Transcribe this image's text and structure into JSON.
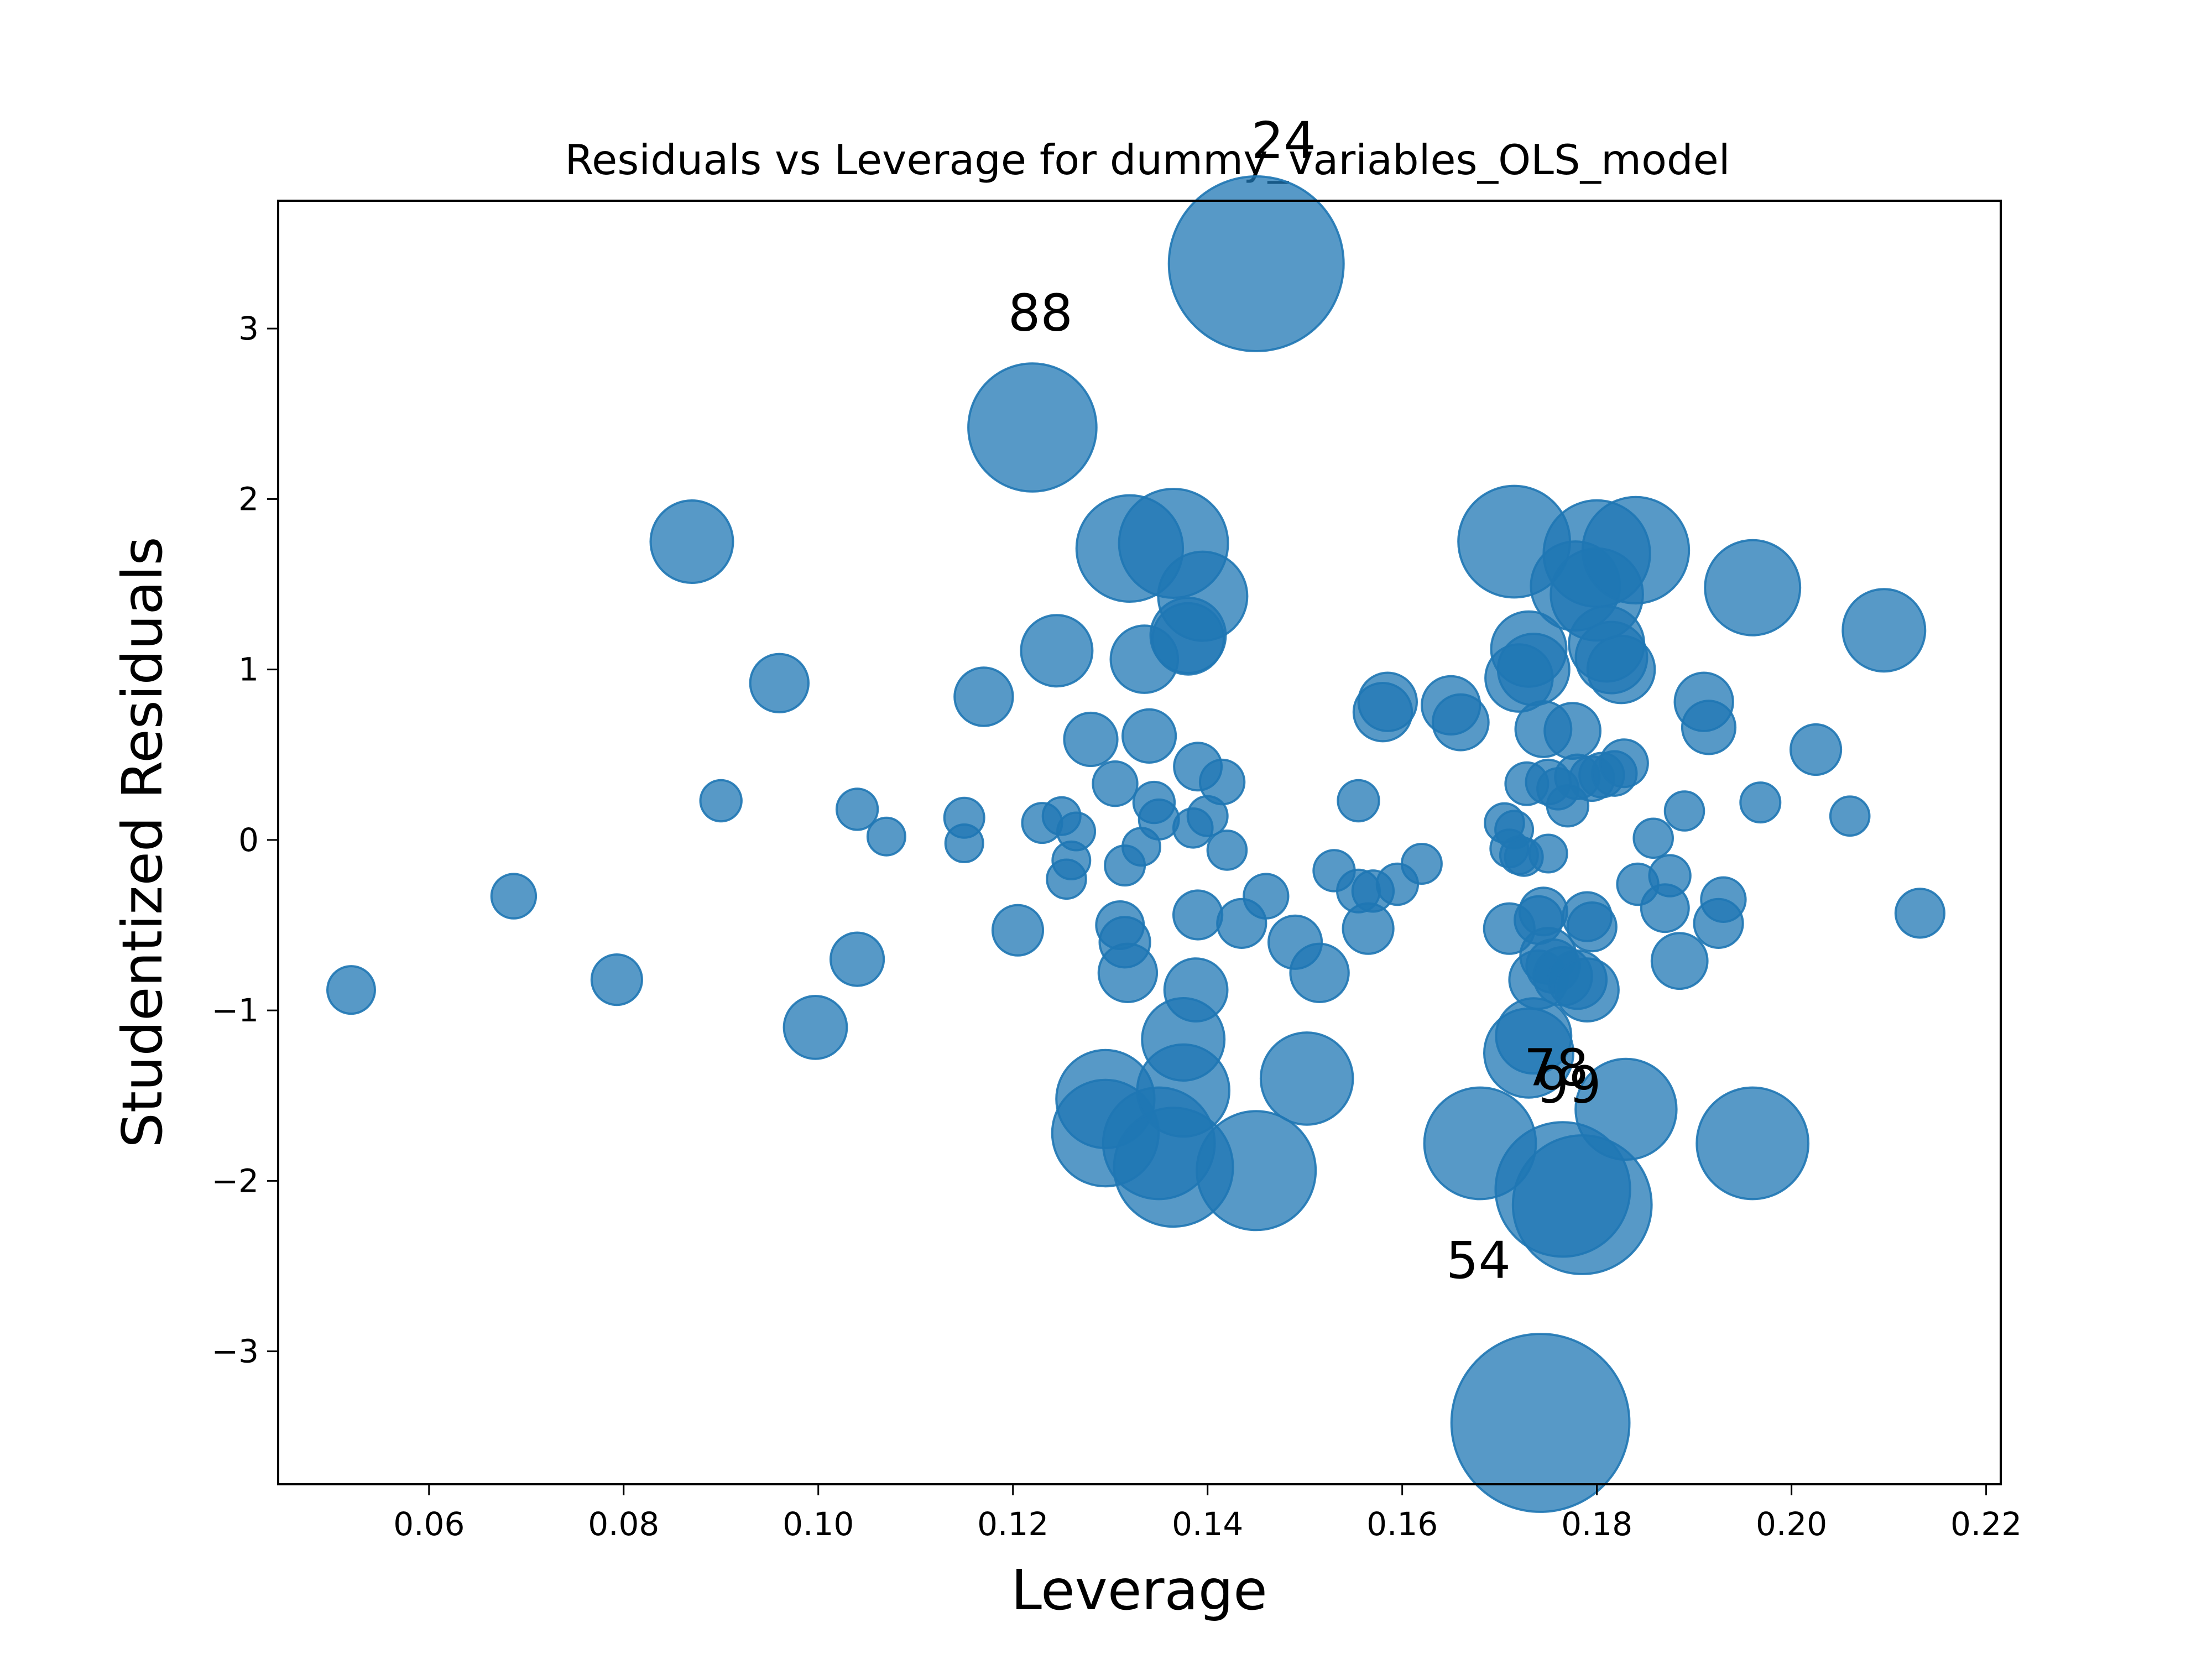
{
  "chart_data": {
    "type": "scatter",
    "title": "Residuals vs Leverage for dummy_variables_OLS_model",
    "xlabel": "Leverage",
    "ylabel": "Studentized Residuals",
    "xlim": [
      0.0445,
      0.2215
    ],
    "ylim": [
      -3.78,
      3.75
    ],
    "xticks": [
      0.06,
      0.08,
      0.1,
      0.12,
      0.14,
      0.16,
      0.18,
      0.2,
      0.22
    ],
    "xtick_labels": [
      "0.06",
      "0.08",
      "0.10",
      "0.12",
      "0.14",
      "0.16",
      "0.18",
      "0.20",
      "0.22"
    ],
    "yticks": [
      -3,
      -2,
      -1,
      0,
      1,
      2,
      3
    ],
    "ytick_labels": [
      "−3",
      "−2",
      "−1",
      "0",
      "1",
      "2",
      "3"
    ],
    "grid": false,
    "legend": "none",
    "color": "#1f77b4",
    "bubble_size": "Cook's distance (relative)",
    "points": [
      {
        "x": 0.052,
        "y": -0.88,
        "s": 0.4
      },
      {
        "x": 0.0687,
        "y": -0.33,
        "s": 0.35
      },
      {
        "x": 0.0793,
        "y": -0.82,
        "s": 0.45
      },
      {
        "x": 0.087,
        "y": 1.75,
        "s": 1.2
      },
      {
        "x": 0.09,
        "y": 0.23,
        "s": 0.3
      },
      {
        "x": 0.096,
        "y": 0.92,
        "s": 0.6
      },
      {
        "x": 0.0997,
        "y": -1.1,
        "s": 0.7
      },
      {
        "x": 0.104,
        "y": 0.18,
        "s": 0.3
      },
      {
        "x": 0.104,
        "y": -0.7,
        "s": 0.5
      },
      {
        "x": 0.107,
        "y": 0.02,
        "s": 0.25
      },
      {
        "x": 0.115,
        "y": 0.13,
        "s": 0.28
      },
      {
        "x": 0.115,
        "y": -0.02,
        "s": 0.25
      },
      {
        "x": 0.117,
        "y": 0.84,
        "s": 0.6
      },
      {
        "x": 0.1205,
        "y": -0.53,
        "s": 0.45
      },
      {
        "x": 0.122,
        "y": 2.42,
        "s": 2.9
      },
      {
        "x": 0.123,
        "y": 0.1,
        "s": 0.28
      },
      {
        "x": 0.1245,
        "y": 1.11,
        "s": 0.9
      },
      {
        "x": 0.125,
        "y": 0.14,
        "s": 0.25
      },
      {
        "x": 0.1255,
        "y": -0.23,
        "s": 0.27
      },
      {
        "x": 0.126,
        "y": -0.12,
        "s": 0.25
      },
      {
        "x": 0.1265,
        "y": 0.05,
        "s": 0.25
      },
      {
        "x": 0.128,
        "y": 0.59,
        "s": 0.5
      },
      {
        "x": 0.1295,
        "y": -1.52,
        "s": 1.7
      },
      {
        "x": 0.1295,
        "y": -1.72,
        "s": 2.0
      },
      {
        "x": 0.1305,
        "y": 0.33,
        "s": 0.35
      },
      {
        "x": 0.131,
        "y": -0.5,
        "s": 0.4
      },
      {
        "x": 0.1315,
        "y": -0.6,
        "s": 0.45
      },
      {
        "x": 0.1315,
        "y": -0.15,
        "s": 0.28
      },
      {
        "x": 0.1318,
        "y": -0.78,
        "s": 0.6
      },
      {
        "x": 0.132,
        "y": 1.71,
        "s": 2.0
      },
      {
        "x": 0.1332,
        "y": -0.04,
        "s": 0.25
      },
      {
        "x": 0.1335,
        "y": 1.06,
        "s": 0.8
      },
      {
        "x": 0.134,
        "y": 0.61,
        "s": 0.5
      },
      {
        "x": 0.1345,
        "y": 0.22,
        "s": 0.3
      },
      {
        "x": 0.135,
        "y": 0.12,
        "s": 0.28
      },
      {
        "x": 0.135,
        "y": -1.78,
        "s": 2.2
      },
      {
        "x": 0.1365,
        "y": 1.74,
        "s": 2.1
      },
      {
        "x": 0.1365,
        "y": -1.92,
        "s": 2.5
      },
      {
        "x": 0.1375,
        "y": -1.47,
        "s": 1.5
      },
      {
        "x": 0.1375,
        "y": -1.17,
        "s": 1.2
      },
      {
        "x": 0.138,
        "y": 1.2,
        "s": 1.0
      },
      {
        "x": 0.138,
        "y": 1.18,
        "s": 0.9
      },
      {
        "x": 0.1385,
        "y": 0.07,
        "s": 0.27
      },
      {
        "x": 0.1388,
        "y": -0.88,
        "s": 0.7
      },
      {
        "x": 0.139,
        "y": 0.43,
        "s": 0.4
      },
      {
        "x": 0.139,
        "y": -0.44,
        "s": 0.42
      },
      {
        "x": 0.1395,
        "y": 1.43,
        "s": 1.4
      },
      {
        "x": 0.14,
        "y": 0.14,
        "s": 0.28
      },
      {
        "x": 0.1415,
        "y": 0.34,
        "s": 0.35
      },
      {
        "x": 0.142,
        "y": -0.06,
        "s": 0.27
      },
      {
        "x": 0.1435,
        "y": -0.49,
        "s": 0.42
      },
      {
        "x": 0.145,
        "y": 3.38,
        "s": 5.4
      },
      {
        "x": 0.145,
        "y": -1.94,
        "s": 2.5
      },
      {
        "x": 0.146,
        "y": -0.33,
        "s": 0.35
      },
      {
        "x": 0.149,
        "y": -0.6,
        "s": 0.5
      },
      {
        "x": 0.1502,
        "y": -1.4,
        "s": 1.5
      },
      {
        "x": 0.1515,
        "y": -0.78,
        "s": 0.6
      },
      {
        "x": 0.153,
        "y": -0.18,
        "s": 0.3
      },
      {
        "x": 0.1555,
        "y": 0.23,
        "s": 0.3
      },
      {
        "x": 0.1555,
        "y": -0.3,
        "s": 0.32
      },
      {
        "x": 0.1565,
        "y": -0.52,
        "s": 0.45
      },
      {
        "x": 0.157,
        "y": -0.3,
        "s": 0.3
      },
      {
        "x": 0.158,
        "y": 0.75,
        "s": 0.6
      },
      {
        "x": 0.1585,
        "y": 0.81,
        "s": 0.6
      },
      {
        "x": 0.1595,
        "y": -0.26,
        "s": 0.3
      },
      {
        "x": 0.162,
        "y": -0.14,
        "s": 0.28
      },
      {
        "x": 0.165,
        "y": 0.79,
        "s": 0.6
      },
      {
        "x": 0.166,
        "y": 0.69,
        "s": 0.55
      },
      {
        "x": 0.168,
        "y": -1.78,
        "s": 2.2
      },
      {
        "x": 0.1705,
        "y": 0.1,
        "s": 0.27
      },
      {
        "x": 0.171,
        "y": -0.52,
        "s": 0.45
      },
      {
        "x": 0.171,
        "y": -0.05,
        "s": 0.25
      },
      {
        "x": 0.1715,
        "y": 0.06,
        "s": 0.25
      },
      {
        "x": 0.1715,
        "y": 1.75,
        "s": 2.2
      },
      {
        "x": 0.172,
        "y": -0.09,
        "s": 0.25
      },
      {
        "x": 0.172,
        "y": 0.95,
        "s": 0.8
      },
      {
        "x": 0.1725,
        "y": -0.1,
        "s": 0.25
      },
      {
        "x": 0.1728,
        "y": 0.33,
        "s": 0.32
      },
      {
        "x": 0.173,
        "y": -1.25,
        "s": 1.4
      },
      {
        "x": 0.173,
        "y": 1.12,
        "s": 1.0
      },
      {
        "x": 0.1735,
        "y": 1.0,
        "s": 0.9
      },
      {
        "x": 0.1735,
        "y": -1.15,
        "s": 1.0
      },
      {
        "x": 0.174,
        "y": -0.47,
        "s": 0.4
      },
      {
        "x": 0.174,
        "y": -0.82,
        "s": 0.6
      },
      {
        "x": 0.1742,
        "y": -3.42,
        "s": 5.6
      },
      {
        "x": 0.1745,
        "y": -0.42,
        "s": 0.4
      },
      {
        "x": 0.1745,
        "y": 0.65,
        "s": 0.55
      },
      {
        "x": 0.175,
        "y": -0.08,
        "s": 0.25
      },
      {
        "x": 0.175,
        "y": 0.34,
        "s": 0.35
      },
      {
        "x": 0.175,
        "y": -0.68,
        "s": 0.55
      },
      {
        "x": 0.1755,
        "y": -0.74,
        "s": 0.5
      },
      {
        "x": 0.176,
        "y": 0.3,
        "s": 0.3
      },
      {
        "x": 0.1765,
        "y": -0.8,
        "s": 0.6
      },
      {
        "x": 0.1765,
        "y": -2.05,
        "s": 3.2
      },
      {
        "x": 0.177,
        "y": 0.2,
        "s": 0.3
      },
      {
        "x": 0.1775,
        "y": 0.64,
        "s": 0.55
      },
      {
        "x": 0.1778,
        "y": 1.49,
        "s": 1.4
      },
      {
        "x": 0.178,
        "y": -0.82,
        "s": 0.6
      },
      {
        "x": 0.178,
        "y": 0.37,
        "s": 0.35
      },
      {
        "x": 0.1785,
        "y": -2.14,
        "s": 3.4
      },
      {
        "x": 0.179,
        "y": -0.88,
        "s": 0.7
      },
      {
        "x": 0.179,
        "y": -0.45,
        "s": 0.42
      },
      {
        "x": 0.1795,
        "y": 0.36,
        "s": 0.35
      },
      {
        "x": 0.1795,
        "y": -0.51,
        "s": 0.42
      },
      {
        "x": 0.18,
        "y": 1.68,
        "s": 2.0
      },
      {
        "x": 0.18,
        "y": 1.44,
        "s": 1.5
      },
      {
        "x": 0.1805,
        "y": 0.38,
        "s": 0.35
      },
      {
        "x": 0.181,
        "y": 1.15,
        "s": 1.0
      },
      {
        "x": 0.1815,
        "y": 1.07,
        "s": 0.9
      },
      {
        "x": 0.1818,
        "y": 0.39,
        "s": 0.35
      },
      {
        "x": 0.1825,
        "y": 1.0,
        "s": 0.8
      },
      {
        "x": 0.1828,
        "y": 0.45,
        "s": 0.4
      },
      {
        "x": 0.183,
        "y": -1.58,
        "s": 1.8
      },
      {
        "x": 0.184,
        "y": 1.7,
        "s": 2.0
      },
      {
        "x": 0.1842,
        "y": -0.26,
        "s": 0.3
      },
      {
        "x": 0.1858,
        "y": 0.01,
        "s": 0.27
      },
      {
        "x": 0.187,
        "y": -0.4,
        "s": 0.4
      },
      {
        "x": 0.1875,
        "y": -0.21,
        "s": 0.3
      },
      {
        "x": 0.1885,
        "y": -0.71,
        "s": 0.55
      },
      {
        "x": 0.189,
        "y": 0.17,
        "s": 0.27
      },
      {
        "x": 0.191,
        "y": 0.81,
        "s": 0.6
      },
      {
        "x": 0.1915,
        "y": 0.66,
        "s": 0.5
      },
      {
        "x": 0.1925,
        "y": -0.49,
        "s": 0.42
      },
      {
        "x": 0.193,
        "y": -0.35,
        "s": 0.35
      },
      {
        "x": 0.196,
        "y": 1.48,
        "s": 1.6
      },
      {
        "x": 0.196,
        "y": -1.78,
        "s": 2.2
      },
      {
        "x": 0.1968,
        "y": 0.22,
        "s": 0.28
      },
      {
        "x": 0.2025,
        "y": 0.53,
        "s": 0.45
      },
      {
        "x": 0.206,
        "y": 0.14,
        "s": 0.27
      },
      {
        "x": 0.2095,
        "y": 1.23,
        "s": 1.2
      },
      {
        "x": 0.2132,
        "y": -0.43,
        "s": 0.42
      }
    ],
    "annotations": [
      {
        "text": "24",
        "x": 0.1445,
        "y": 4.0
      },
      {
        "text": "88",
        "x": 0.1195,
        "y": 2.99
      },
      {
        "text": "78",
        "x": 0.1725,
        "y": -1.44
      },
      {
        "text": "99",
        "x": 0.1738,
        "y": -1.54
      },
      {
        "text": "54",
        "x": 0.1645,
        "y": -2.57
      }
    ]
  }
}
